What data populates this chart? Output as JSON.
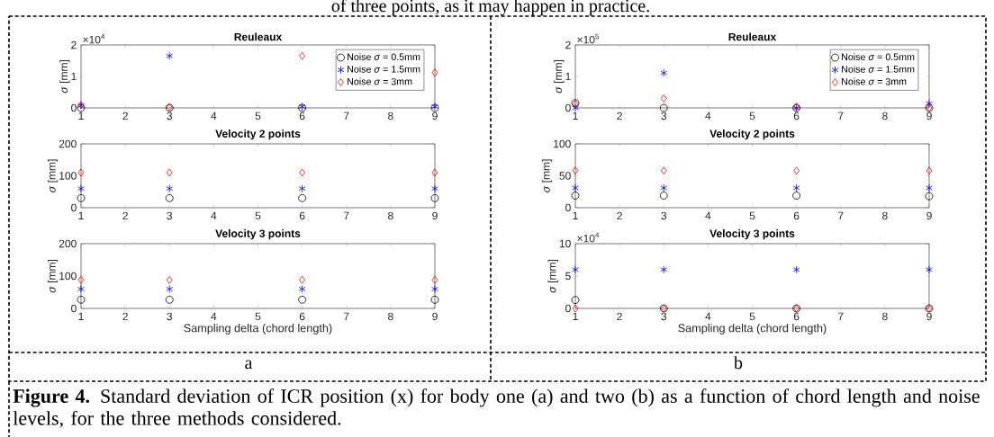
{
  "chart_data": [
    {
      "type": "scatter",
      "title": "Reuleaux",
      "ylabel": "*σ* [mm]",
      "x": [
        1,
        3,
        6,
        9
      ],
      "xlim": [
        1,
        9
      ],
      "xticks": [
        1,
        2,
        3,
        4,
        5,
        6,
        7,
        8,
        9
      ],
      "ylim": [
        0,
        2
      ],
      "yticks": [
        0,
        1,
        2
      ],
      "grid": false,
      "legend": "top right",
      "annotations": [
        "×10$^{4}$",
        "of three points, as it may happen in practice."
      ],
      "series": [
        {
          "name": "Noise *σ* = 0.5mm",
          "color": "#000000",
          "marker": "circle",
          "values": [
            0,
            0,
            0,
            0
          ]
        },
        {
          "name": "Noise *σ* = 1.5mm",
          "color": "#0000ff",
          "marker": "cross",
          "values": [
            0.07,
            1.65,
            0.04,
            0.04
          ]
        },
        {
          "name": "Noise *σ* = 3mm",
          "color": "#ff0000",
          "marker": "diamond",
          "values": [
            0.09,
            0.02,
            1.65,
            1.12
          ]
        }
      ]
    },
    {
      "type": "scatter",
      "title": "Velocity 2 points",
      "ylabel": "*σ* [mm]",
      "x": [
        1,
        3,
        6,
        9
      ],
      "xlim": [
        1,
        9
      ],
      "xticks": [
        1,
        2,
        3,
        4,
        5,
        6,
        7,
        8,
        9
      ],
      "ylim": [
        0,
        200
      ],
      "yticks": [
        0,
        100,
        200
      ],
      "grid": false,
      "series": [
        {
          "color": "#000000",
          "marker": "circle",
          "values": [
            30,
            30,
            30,
            30
          ]
        },
        {
          "color": "#0000ff",
          "marker": "cross",
          "values": [
            60,
            60,
            60,
            60
          ]
        },
        {
          "color": "#ff0000",
          "marker": "diamond",
          "values": [
            110,
            110,
            110,
            110
          ]
        }
      ]
    },
    {
      "type": "scatter",
      "title": "Velocity 3 points",
      "xlabel": "Sampling delta (chord length)",
      "ylabel": "*σ* [mm]",
      "x": [
        1,
        3,
        6,
        9
      ],
      "xlim": [
        1,
        9
      ],
      "xticks": [
        1,
        2,
        3,
        4,
        5,
        6,
        7,
        8,
        9
      ],
      "ylim": [
        0,
        200
      ],
      "yticks": [
        0,
        100,
        200
      ],
      "grid": false,
      "annotations": [
        "a"
      ],
      "series": [
        {
          "color": "#000000",
          "marker": "circle",
          "values": [
            27,
            27,
            27,
            27
          ]
        },
        {
          "color": "#0000ff",
          "marker": "cross",
          "values": [
            60,
            60,
            60,
            60
          ]
        },
        {
          "color": "#ff0000",
          "marker": "diamond",
          "values": [
            88,
            88,
            88,
            88
          ]
        }
      ]
    },
    {
      "type": "scatter",
      "title": "Reuleaux",
      "ylabel": "*σ* [mm]",
      "x": [
        1,
        3,
        6,
        9
      ],
      "xlim": [
        1,
        9
      ],
      "xticks": [
        1,
        2,
        3,
        4,
        5,
        6,
        7,
        8,
        9
      ],
      "ylim": [
        0,
        2
      ],
      "yticks": [
        0,
        1,
        2
      ],
      "grid": false,
      "legend": "top right",
      "annotations": [
        "×10$^{5}$"
      ],
      "series": [
        {
          "name": "Noise *σ* = 0.5mm",
          "color": "#000000",
          "marker": "circle",
          "values": [
            0.15,
            0,
            0,
            0
          ]
        },
        {
          "name": "Noise *σ* = 1.5mm",
          "color": "#0000ff",
          "marker": "cross",
          "values": [
            0,
            1.11,
            0,
            0.14
          ]
        },
        {
          "name": "Noise *σ* = 3mm",
          "color": "#ff0000",
          "marker": "diamond",
          "values": [
            0.12,
            0.3,
            0.04,
            0
          ]
        }
      ]
    },
    {
      "type": "scatter",
      "title": "Velocity 2 points",
      "ylabel": "*σ* [mm]",
      "x": [
        1,
        3,
        6,
        9
      ],
      "xlim": [
        1,
        9
      ],
      "xticks": [
        1,
        2,
        3,
        4,
        5,
        6,
        7,
        8,
        9
      ],
      "ylim": [
        0,
        100
      ],
      "yticks": [
        0,
        50,
        100
      ],
      "grid": false,
      "series": [
        {
          "color": "#000000",
          "marker": "circle",
          "values": [
            19,
            19,
            19,
            18
          ]
        },
        {
          "color": "#0000ff",
          "marker": "cross",
          "values": [
            31,
            31,
            31,
            31
          ]
        },
        {
          "color": "#ff0000",
          "marker": "diamond",
          "values": [
            58,
            58,
            58,
            58
          ]
        }
      ]
    },
    {
      "type": "scatter",
      "title": "Velocity 3 points",
      "xlabel": "Sampling delta (chord length)",
      "ylabel": "*σ* [mm]",
      "x": [
        1,
        3,
        6,
        9
      ],
      "xlim": [
        1,
        9
      ],
      "xticks": [
        1,
        2,
        3,
        4,
        5,
        6,
        7,
        8,
        9
      ],
      "ylim": [
        0,
        10
      ],
      "yticks": [
        0,
        5,
        10
      ],
      "grid": false,
      "annotations": [
        "×10$^{4}$",
        "b",
        "**Figure 4.** Standard deviation of ICR position (x) for body one (a) and two (b) as a function of chord length and noise levels, for the three methods considered."
      ],
      "series": [
        {
          "color": "#000000",
          "marker": "circle",
          "values": [
            1.3,
            0,
            0,
            0
          ]
        },
        {
          "color": "#0000ff",
          "marker": "cross",
          "values": [
            6,
            6,
            6,
            6
          ]
        },
        {
          "color": "#ff0000",
          "marker": "diamond",
          "values": [
            0,
            0,
            0,
            0
          ]
        }
      ]
    }
  ]
}
